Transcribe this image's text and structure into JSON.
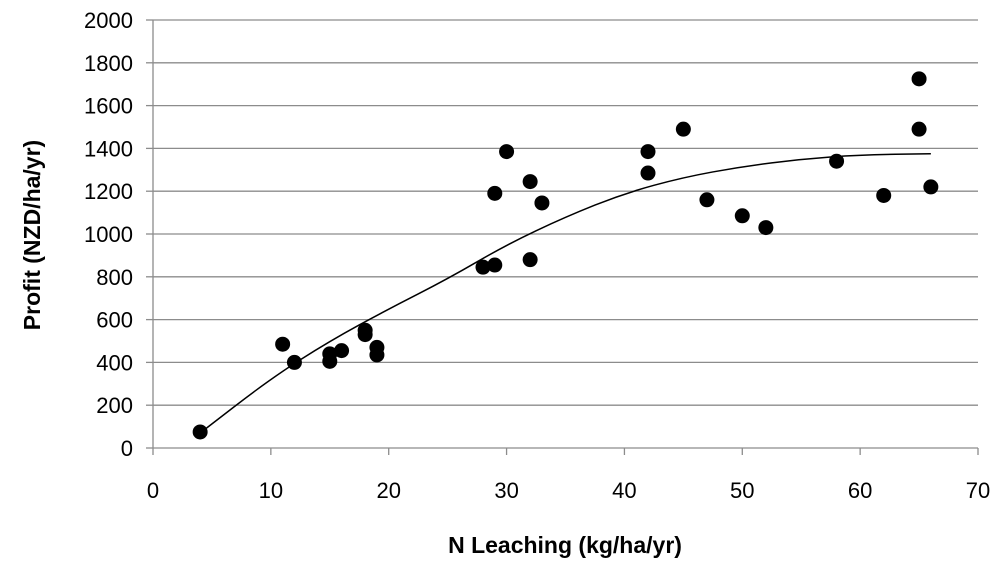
{
  "chart_data": {
    "type": "scatter",
    "title": "",
    "xlabel": "N Leaching (kg/ha/yr)",
    "ylabel": "Profit (NZD/ha/yr)",
    "xlim": [
      0,
      70
    ],
    "ylim": [
      0,
      2000
    ],
    "x_ticks": [
      0,
      10,
      20,
      30,
      40,
      50,
      60,
      70
    ],
    "y_ticks": [
      0,
      200,
      400,
      600,
      800,
      1000,
      1200,
      1400,
      1600,
      1800,
      2000
    ],
    "grid": "horizontal",
    "legend": "none",
    "marker_color": "#000000",
    "series": [
      {
        "points": [
          {
            "x": 4,
            "y": 75
          },
          {
            "x": 11,
            "y": 485
          },
          {
            "x": 12,
            "y": 400
          },
          {
            "x": 15,
            "y": 440
          },
          {
            "x": 15,
            "y": 405
          },
          {
            "x": 16,
            "y": 455
          },
          {
            "x": 18,
            "y": 550
          },
          {
            "x": 18,
            "y": 530
          },
          {
            "x": 19,
            "y": 470
          },
          {
            "x": 19,
            "y": 435
          },
          {
            "x": 28,
            "y": 845
          },
          {
            "x": 29,
            "y": 855
          },
          {
            "x": 29,
            "y": 1190
          },
          {
            "x": 30,
            "y": 1385
          },
          {
            "x": 32,
            "y": 1245
          },
          {
            "x": 32,
            "y": 880
          },
          {
            "x": 33,
            "y": 1145
          },
          {
            "x": 42,
            "y": 1385
          },
          {
            "x": 42,
            "y": 1285
          },
          {
            "x": 45,
            "y": 1490
          },
          {
            "x": 47,
            "y": 1160
          },
          {
            "x": 50,
            "y": 1085
          },
          {
            "x": 52,
            "y": 1030
          },
          {
            "x": 58,
            "y": 1340
          },
          {
            "x": 62,
            "y": 1180
          },
          {
            "x": 65,
            "y": 1725
          },
          {
            "x": 65,
            "y": 1490
          },
          {
            "x": 66,
            "y": 1220
          }
        ]
      }
    ],
    "trendline": {
      "type": "polynomial",
      "points": [
        {
          "x": 4,
          "y": 70
        },
        {
          "x": 10,
          "y": 325
        },
        {
          "x": 15,
          "y": 500
        },
        {
          "x": 20,
          "y": 650
        },
        {
          "x": 25,
          "y": 790
        },
        {
          "x": 30,
          "y": 950
        },
        {
          "x": 35,
          "y": 1080
        },
        {
          "x": 40,
          "y": 1190
        },
        {
          "x": 45,
          "y": 1265
        },
        {
          "x": 50,
          "y": 1315
        },
        {
          "x": 55,
          "y": 1350
        },
        {
          "x": 60,
          "y": 1370
        },
        {
          "x": 66,
          "y": 1375
        }
      ]
    }
  }
}
